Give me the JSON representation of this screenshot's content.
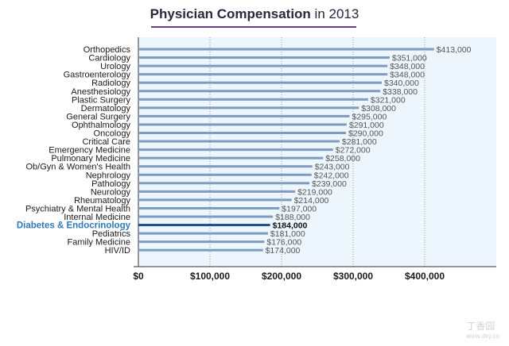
{
  "title": {
    "bold": "Physician Compensation",
    "rest": " in 2013"
  },
  "chart_data": {
    "type": "bar",
    "orientation": "horizontal",
    "title": "Physician Compensation in 2013",
    "xlabel": "",
    "ylabel": "",
    "xlim": [
      0,
      500000
    ],
    "grid": true,
    "x_ticks": [
      {
        "value": 0,
        "label": "$0"
      },
      {
        "value": 100000,
        "label": "$100,000"
      },
      {
        "value": 200000,
        "label": "$200,000"
      },
      {
        "value": 300000,
        "label": "$300,000"
      },
      {
        "value": 400000,
        "label": "$400,000"
      }
    ],
    "highlight": "Diabetes & Endocrinology",
    "categories": [
      "Orthopedics",
      "Cardiology",
      "Urology",
      "Gastroenterology",
      "Radiology",
      "Anesthesiology",
      "Plastic Surgery",
      "Dermatology",
      "General Surgery",
      "Ophthalmology",
      "Oncology",
      "Critical Care",
      "Emergency Medicine",
      "Pulmonary Medicine",
      "Ob/Gyn & Women's Health",
      "Nephrology",
      "Pathology",
      "Neurology",
      "Rheumatology",
      "Psychiatry & Mental Health",
      "Internal Medicine",
      "Diabetes & Endocrinology",
      "Pediatrics",
      "Family Medicine",
      "HIV/ID"
    ],
    "values": [
      413000,
      351000,
      348000,
      348000,
      340000,
      338000,
      321000,
      308000,
      295000,
      291000,
      290000,
      281000,
      272000,
      258000,
      243000,
      242000,
      239000,
      219000,
      214000,
      197000,
      188000,
      184000,
      181000,
      176000,
      174000
    ],
    "value_labels": [
      "$413,000",
      "$351,000",
      "$348,000",
      "$348,000",
      "$340,000",
      "$338,000",
      "$321,000",
      "$308,000",
      "$295,000",
      "$291,000",
      "$290,000",
      "$281,000",
      "$272,000",
      "$258,000",
      "$243,000",
      "$242,000",
      "$239,000",
      "$219,000",
      "$214,000",
      "$197,000",
      "$188,000",
      "$184,000",
      "$181,000",
      "$176,000",
      "$174,000"
    ]
  },
  "colors": {
    "bar": "#7f9bbf",
    "highlight_bar": "#1f4f86",
    "highlight_text": "#2e7ab8",
    "background": "#edf6fc",
    "grid": "#8a98a8",
    "text": "#1a1a1a",
    "value_text": "#555555"
  },
  "watermark": {
    "main": "丁香园",
    "sub": "www.dxy.cn"
  }
}
